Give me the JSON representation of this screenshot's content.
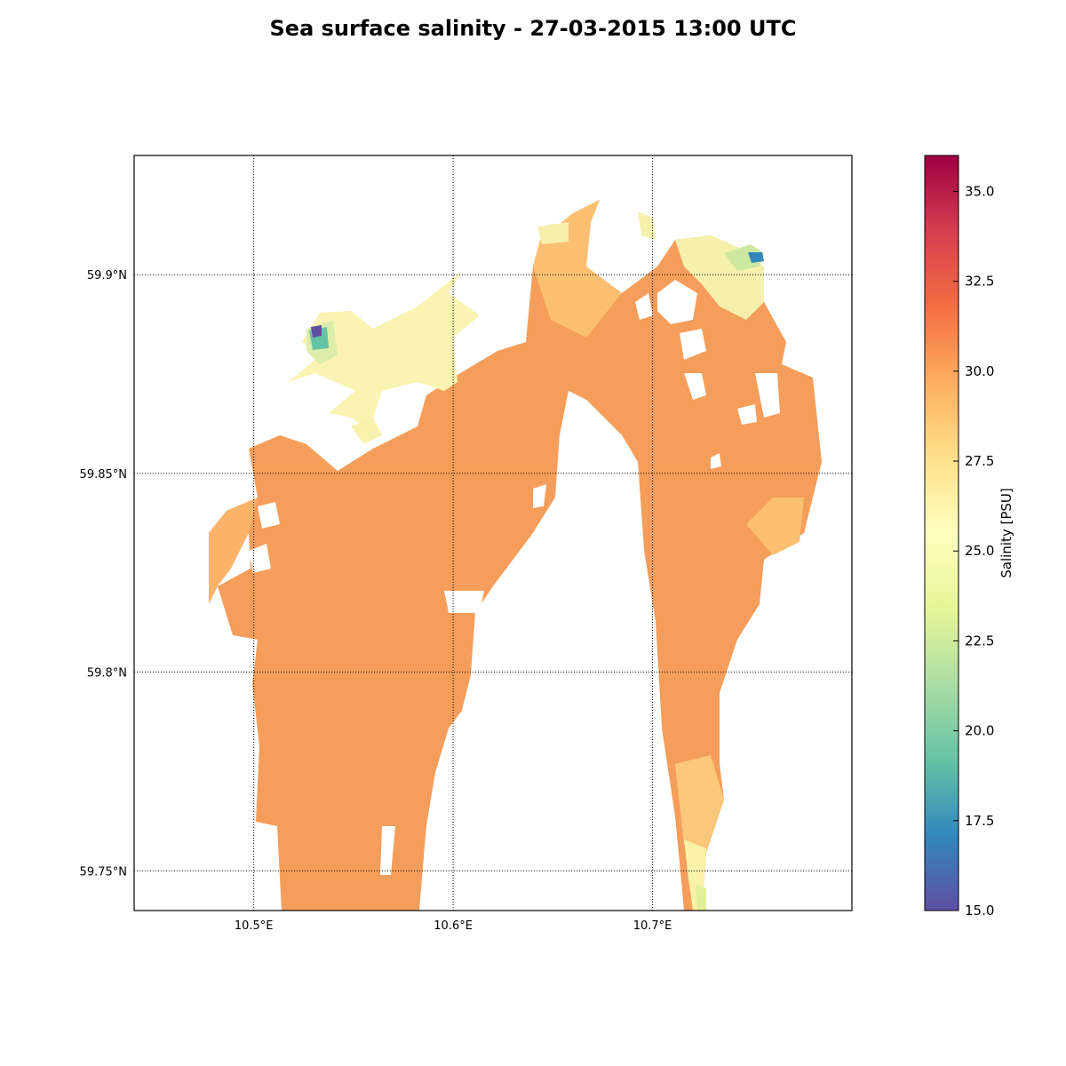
{
  "title": "Sea surface salinity - 27-03-2015 13:00 UTC",
  "map": {
    "lon_range": [
      10.44,
      10.8
    ],
    "lat_range": [
      59.74,
      59.93
    ],
    "lon_ticks": [
      {
        "value": 10.5,
        "label": "10.5°E"
      },
      {
        "value": 10.6,
        "label": "10.6°E"
      },
      {
        "value": 10.7,
        "label": "10.7°E"
      }
    ],
    "lat_ticks": [
      {
        "value": 59.9,
        "label": "59.9°N"
      },
      {
        "value": 59.85,
        "label": "59.85°N"
      },
      {
        "value": 59.8,
        "label": "59.8°N"
      },
      {
        "value": 59.75,
        "label": "59.75°N"
      }
    ],
    "gridlines": "dotted",
    "colors": {
      "dominant_field": "#f59d5a",
      "mid_field": "#fbbf72",
      "fresh_field": "#fdf5b0",
      "very_fresh": "#3288bd",
      "land": "#ffffff"
    }
  },
  "colorbar": {
    "label": "Salinity [PSU]",
    "range": [
      15.0,
      36.0
    ],
    "cmap": "Spectral_r",
    "ticks": [
      "15.0",
      "17.5",
      "20.0",
      "22.5",
      "25.0",
      "27.5",
      "30.0",
      "32.5",
      "35.0"
    ],
    "tick_values": [
      15.0,
      17.5,
      20.0,
      22.5,
      25.0,
      27.5,
      30.0,
      32.5,
      35.0
    ],
    "stops": [
      "#5e4fa2",
      "#3288bd",
      "#66c2a5",
      "#abdda4",
      "#e6f598",
      "#ffffbf",
      "#fee08b",
      "#fdae61",
      "#f46d43",
      "#d53e4f",
      "#9e0142"
    ]
  }
}
